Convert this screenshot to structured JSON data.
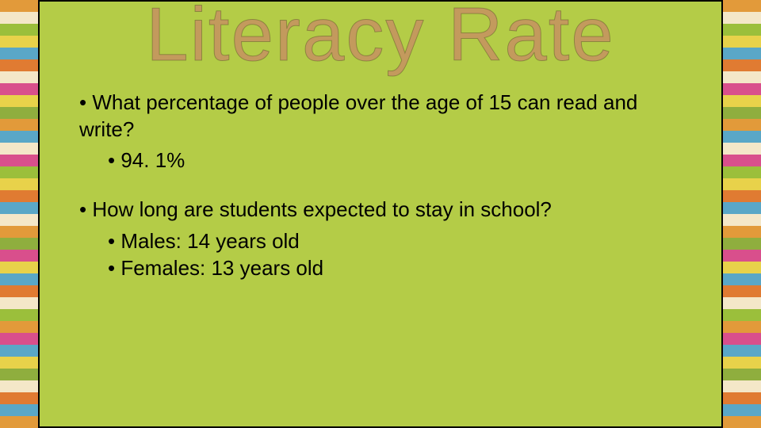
{
  "slide": {
    "background_color": "#b4cc47",
    "title": {
      "text": "Literacy Rate",
      "color": "#c39a5d",
      "fontsize_pt": 72,
      "font_family": "Arial"
    },
    "body_fontsize_pt": 20,
    "body_color": "#000000",
    "bullets": [
      {
        "text": "What percentage of people over the age of 15 can read and write?",
        "sub": [
          "94. 1%"
        ]
      },
      {
        "text": "How long are students expected to stay in school?",
        "sub": [
          "Males: 14 years old",
          "Females: 13 years old"
        ]
      }
    ]
  },
  "stripe_colors": [
    "#e29a3a",
    "#f4e7c8",
    "#9bbf3b",
    "#e8d24a",
    "#5aa7c7",
    "#e07b32",
    "#f4e7c8",
    "#d94f8c",
    "#e8d24a",
    "#8fae3e",
    "#e29a3a",
    "#5aa7c7",
    "#f4e7c8",
    "#d94f8c",
    "#9bbf3b",
    "#e8d24a",
    "#e07b32",
    "#5aa7c7",
    "#f4e7c8",
    "#e29a3a",
    "#8fae3e",
    "#d94f8c",
    "#e8d24a",
    "#5aa7c7",
    "#e07b32",
    "#f4e7c8",
    "#9bbf3b",
    "#e29a3a",
    "#d94f8c",
    "#5aa7c7",
    "#e8d24a",
    "#8fae3e",
    "#f4e7c8",
    "#e07b32",
    "#5aa7c7",
    "#e29a3a"
  ]
}
